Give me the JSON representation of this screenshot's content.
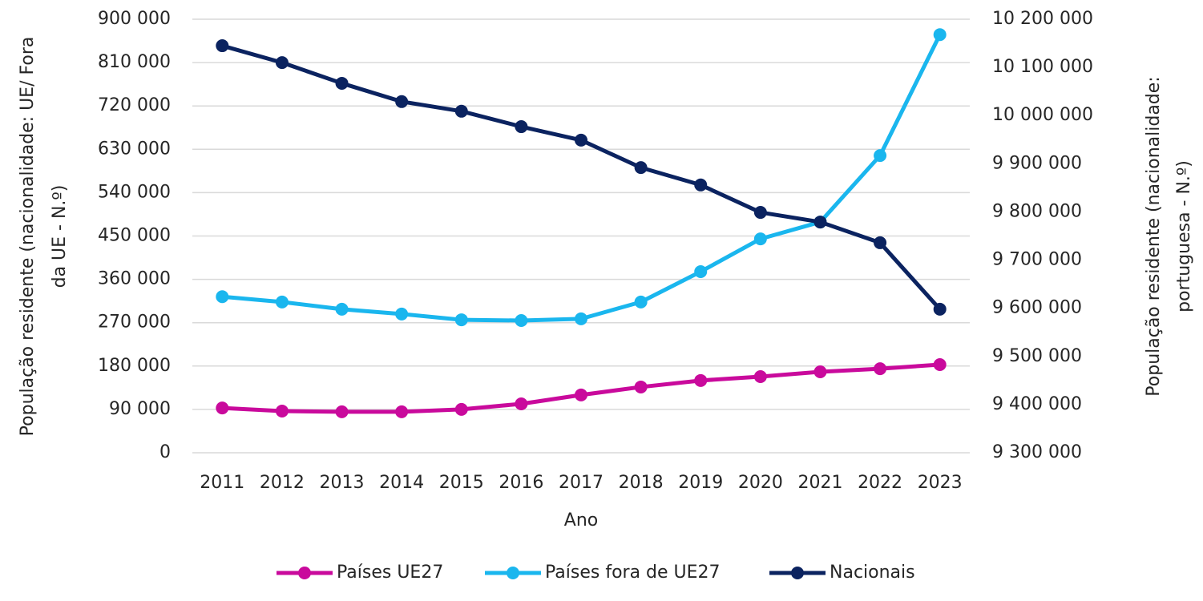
{
  "chart_data": {
    "type": "line",
    "x_label": "Ano",
    "y_label": [
      "População residente (nacionalidade: UE/ Fora",
      "da UE - N.º)"
    ],
    "y2_label": [
      "População residente (nacionalidade:",
      "portuguesa  - N.º)"
    ],
    "categories": [
      "2011",
      "2012",
      "2013",
      "2014",
      "2015",
      "2016",
      "2017",
      "2018",
      "2019",
      "2020",
      "2021",
      "2022",
      "2023"
    ],
    "series": [
      {
        "name": "Países UE27",
        "color": "#c90a9c",
        "values": [
          93000,
          86500,
          85000,
          85000,
          90000,
          101500,
          120000,
          136500,
          150000,
          158000,
          168000,
          174500,
          183000
        ]
      },
      {
        "name": "Países fora de UE27",
        "color": "#1ab6ee",
        "values": [
          324000,
          313000,
          298000,
          288000,
          276000,
          274500,
          278000,
          313000,
          376000,
          444000,
          479000,
          617000,
          868000
        ]
      },
      {
        "name": "Nacionais",
        "color": "#0b2360",
        "axis": "y2",
        "values": [
          10145000,
          10110000,
          10067000,
          10029000,
          10009000,
          9977000,
          9949000,
          9892000,
          9856000,
          9799000,
          9779000,
          9736000,
          9598000
        ]
      }
    ],
    "ylim": [
      0,
      900000
    ],
    "yticks": [
      0,
      {
        "value": 90000,
        "label": "90 000"
      },
      {
        "value": 180000,
        "label": "180 000"
      },
      {
        "value": 270000,
        "label": "270 000"
      },
      {
        "value": 360000,
        "label": "360 000"
      },
      {
        "value": 450000,
        "label": "450 000"
      },
      {
        "value": 540000,
        "label": "540 000"
      },
      {
        "value": 630000,
        "label": "630 000"
      },
      {
        "value": 720000,
        "label": "720 000"
      },
      {
        "value": 810000,
        "label": "810 000"
      },
      {
        "value": 900000,
        "label": "900 000"
      }
    ],
    "y2lim": [
      9300000,
      10200000
    ],
    "y2ticks": [
      {
        "value": 9300000,
        "label": "9 300 000"
      },
      {
        "value": 9400000,
        "label": "9 400 000"
      },
      {
        "value": 9500000,
        "label": "9 500 000"
      },
      {
        "value": 9600000,
        "label": "9 600 000"
      },
      {
        "value": 9700000,
        "label": "9 700 000"
      },
      {
        "value": 9800000,
        "label": "9 800 000"
      },
      {
        "value": 9900000,
        "label": "9 900 000"
      },
      {
        "value": 10000000,
        "label": "10 000 000"
      },
      {
        "value": 10100000,
        "label": "10 100 000"
      },
      {
        "value": 10200000,
        "label": "10 200 000"
      }
    ],
    "grid": true,
    "legend": "bottom"
  }
}
